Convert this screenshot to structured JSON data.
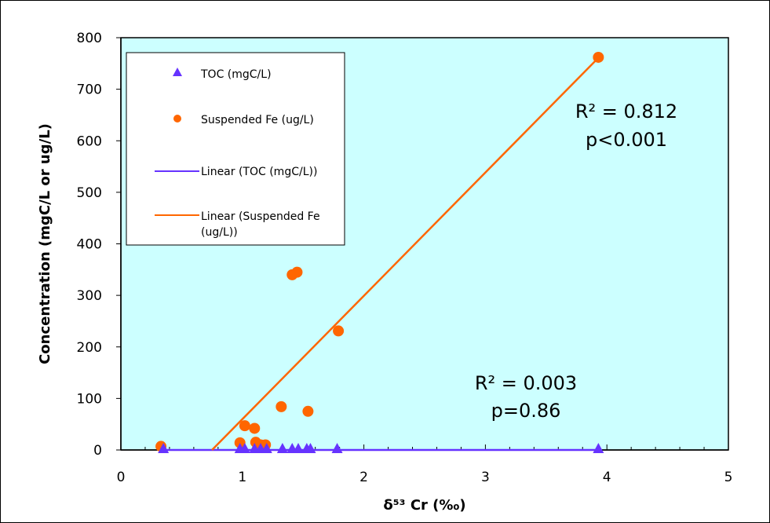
{
  "chart_data": {
    "type": "scatter",
    "xlabel": "δ⁵³ Cr (‰)",
    "ylabel": "Concentration (mgC/L or ug/L)",
    "xlim": [
      0,
      5
    ],
    "ylim": [
      0,
      800
    ],
    "x_ticks": [
      "0",
      "1",
      "2",
      "3",
      "4",
      "5"
    ],
    "y_ticks": [
      "0",
      "100",
      "200",
      "300",
      "400",
      "500",
      "600",
      "700",
      "800"
    ],
    "x_tick_values": [
      0,
      1,
      2,
      3,
      4,
      5
    ],
    "y_tick_values": [
      0,
      100,
      200,
      300,
      400,
      500,
      600,
      700,
      800
    ],
    "plot_background": "#ccffff",
    "grid": false,
    "legend_position": "top-left",
    "series": [
      {
        "name": "TOC (mgC/L)",
        "marker": "triangle",
        "color": "#6633ff",
        "x": [
          0.35,
          0.98,
          1.02,
          1.1,
          1.15,
          1.2,
          1.33,
          1.41,
          1.46,
          1.53,
          1.56,
          1.78,
          3.93
        ],
        "y": [
          0,
          0,
          0,
          0,
          0,
          0,
          0,
          0,
          0,
          0,
          0,
          0,
          0
        ]
      },
      {
        "name": "Suspended Fe (ug/L)",
        "marker": "circle",
        "color": "#ff6600",
        "x": [
          0.33,
          0.98,
          1.02,
          1.1,
          1.11,
          1.15,
          1.19,
          1.32,
          1.41,
          1.45,
          1.54,
          1.79,
          3.93
        ],
        "y": [
          7,
          14,
          47,
          42,
          15,
          10,
          10,
          84,
          340,
          345,
          75,
          231,
          762
        ]
      }
    ],
    "fits": [
      {
        "name": "Linear (TOC (mgC/L))",
        "color": "#6633ff",
        "x": [
          0.33,
          3.93
        ],
        "y": [
          0,
          0
        ]
      },
      {
        "name": "Linear (Suspended Fe (ug/L))",
        "color": "#ff6600",
        "x": [
          0.75,
          3.93
        ],
        "y": [
          0,
          761
        ]
      }
    ],
    "legend": [
      "TOC (mgC/L)",
      "Suspended Fe (ug/L)",
      "Linear (TOC (mgC/L))",
      "Linear (Suspended Fe (ug/L))"
    ],
    "annotations": [
      {
        "lines": [
          "R² = 0.812",
          "p<0.001"
        ]
      },
      {
        "lines": [
          "R² = 0.003",
          "p=0.86"
        ]
      }
    ]
  }
}
